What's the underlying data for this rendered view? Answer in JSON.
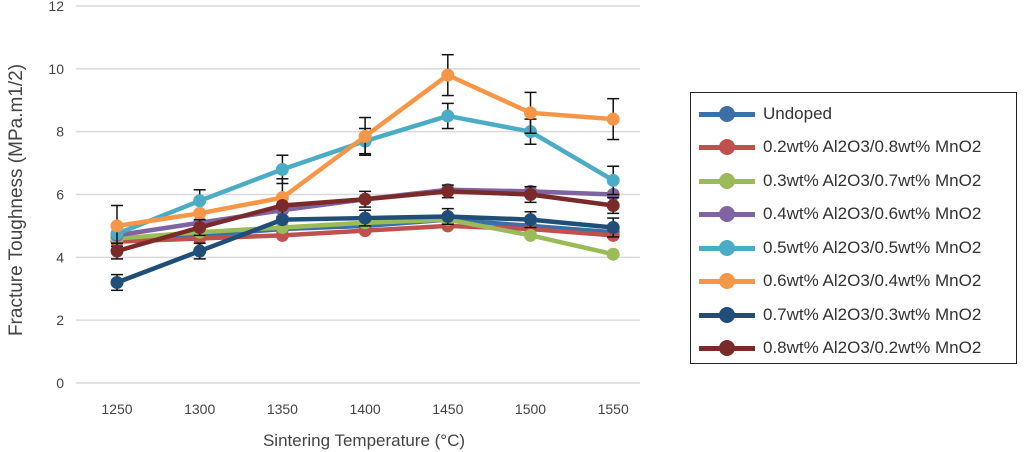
{
  "chart_data": {
    "type": "line",
    "title": "",
    "xlabel": "Sintering Temperature (°C)",
    "ylabel": "Fracture  Toughness (MPa.m1/2)",
    "x": [
      1250,
      1300,
      1350,
      1400,
      1450,
      1500,
      1550
    ],
    "ylim": [
      0,
      12
    ],
    "yticks": [
      0,
      2,
      4,
      6,
      8,
      10,
      12
    ],
    "grid": true,
    "legend_position": "right",
    "series": [
      {
        "name": "Undoped",
        "color": "#3b6fa6",
        "values": [
          4.6,
          4.7,
          4.9,
          5.0,
          5.2,
          5.0,
          4.8
        ],
        "error": [
          0,
          0,
          0,
          0,
          0,
          0,
          0
        ]
      },
      {
        "name": "0.2wt% Al2O3/0.8wt% MnO2",
        "color": "#c0504d",
        "values": [
          4.5,
          4.6,
          4.7,
          4.85,
          5.0,
          4.9,
          4.7
        ],
        "error": [
          0,
          0,
          0,
          0,
          0,
          0,
          0
        ]
      },
      {
        "name": "0.3wt% Al2O3/0.7wt% MnO2",
        "color": "#9bbb59",
        "values": [
          4.6,
          4.8,
          4.95,
          5.1,
          5.2,
          4.7,
          4.1
        ],
        "error": [
          0,
          0,
          0,
          0,
          0,
          0,
          0
        ]
      },
      {
        "name": "0.4wt% Al2O3/0.6wt% MnO2",
        "color": "#8064a2",
        "values": [
          4.7,
          5.1,
          5.5,
          5.85,
          6.15,
          6.1,
          6.0
        ],
        "error": [
          0,
          0,
          0,
          0,
          0,
          0,
          0
        ]
      },
      {
        "name": "0.5wt% Al2O3/0.5wt% MnO2",
        "color": "#4bacc6",
        "values": [
          4.75,
          5.8,
          6.8,
          7.7,
          8.5,
          8.0,
          6.45
        ],
        "error": [
          0,
          0.35,
          0.45,
          0.4,
          0.4,
          0.4,
          0.45
        ]
      },
      {
        "name": "0.6wt% Al2O3/0.4wt% MnO2",
        "color": "#f79646",
        "values": [
          5.0,
          5.4,
          5.9,
          7.85,
          9.8,
          8.6,
          8.4
        ],
        "error": [
          0.65,
          0,
          0.6,
          0.6,
          0.65,
          0.65,
          0.65
        ]
      },
      {
        "name": "0.7wt% Al2O3/0.3wt% MnO2",
        "color": "#1f4e79",
        "values": [
          3.2,
          4.2,
          5.2,
          5.25,
          5.3,
          5.2,
          4.95
        ],
        "error": [
          0.25,
          0.25,
          0,
          0.25,
          0.25,
          0.25,
          0.3
        ]
      },
      {
        "name": "0.8wt% Al2O3/0.2wt% MnO2",
        "color": "#7b2a2a",
        "values": [
          4.2,
          4.95,
          5.65,
          5.85,
          6.1,
          6.0,
          5.65
        ],
        "error": [
          0.25,
          0.25,
          0,
          0.25,
          0.2,
          0.25,
          0.25
        ]
      }
    ]
  }
}
